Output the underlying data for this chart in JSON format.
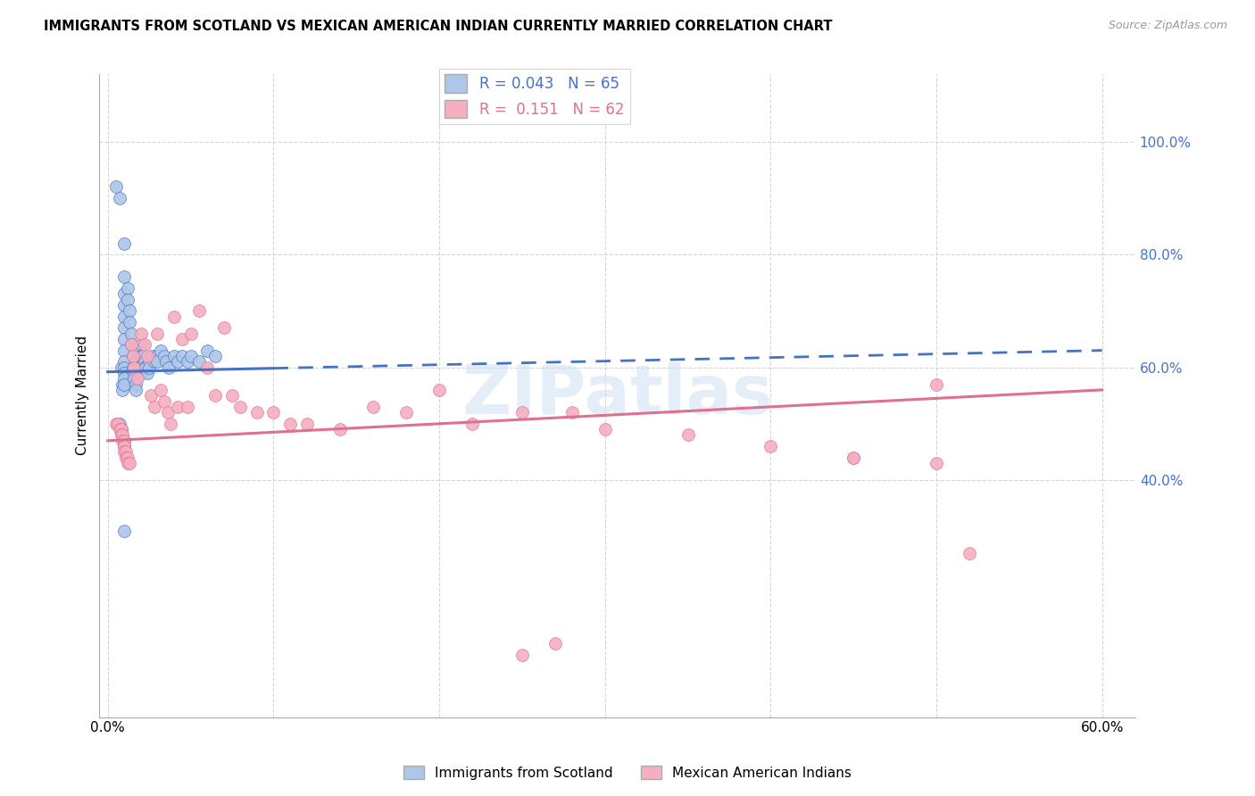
{
  "title": "IMMIGRANTS FROM SCOTLAND VS MEXICAN AMERICAN INDIAN CURRENTLY MARRIED CORRELATION CHART",
  "source": "Source: ZipAtlas.com",
  "ylabel": "Currently Married",
  "legend_label1": "Immigrants from Scotland",
  "legend_label2": "Mexican American Indians",
  "r1": 0.043,
  "n1": 65,
  "r2": 0.151,
  "n2": 62,
  "color_blue": "#aec6e8",
  "color_pink": "#f4afc0",
  "line_color_blue": "#4472c4",
  "line_color_pink": "#e07090",
  "watermark": "ZIPatlas",
  "xlim": [
    -0.005,
    0.62
  ],
  "ylim": [
    -0.02,
    1.12
  ],
  "y_tick_vals": [
    0.4,
    0.6,
    0.8,
    1.0
  ],
  "y_tick_labels": [
    "40.0%",
    "60.0%",
    "80.0%",
    "100.0%"
  ],
  "x_tick_vals": [
    0.0,
    0.1,
    0.2,
    0.3,
    0.4,
    0.5,
    0.6
  ],
  "x_tick_labels": [
    "0.0%",
    "",
    "",
    "",
    "",
    "",
    "60.0%"
  ],
  "blue_x": [
    0.005,
    0.007,
    0.008,
    0.009,
    0.009,
    0.01,
    0.01,
    0.01,
    0.01,
    0.01,
    0.01,
    0.01,
    0.01,
    0.01,
    0.01,
    0.01,
    0.01,
    0.01,
    0.012,
    0.012,
    0.013,
    0.013,
    0.014,
    0.014,
    0.015,
    0.015,
    0.016,
    0.016,
    0.017,
    0.017,
    0.018,
    0.018,
    0.019,
    0.02,
    0.02,
    0.02,
    0.02,
    0.021,
    0.022,
    0.022,
    0.023,
    0.024,
    0.025,
    0.025,
    0.027,
    0.028,
    0.03,
    0.03,
    0.032,
    0.034,
    0.035,
    0.037,
    0.04,
    0.042,
    0.045,
    0.048,
    0.05,
    0.055,
    0.06,
    0.065,
    0.007,
    0.008,
    0.01,
    0.01,
    0.01
  ],
  "blue_y": [
    0.92,
    0.9,
    0.6,
    0.57,
    0.56,
    0.82,
    0.76,
    0.73,
    0.71,
    0.69,
    0.67,
    0.65,
    0.63,
    0.61,
    0.6,
    0.59,
    0.58,
    0.57,
    0.74,
    0.72,
    0.7,
    0.68,
    0.66,
    0.64,
    0.62,
    0.6,
    0.59,
    0.58,
    0.57,
    0.56,
    0.63,
    0.61,
    0.6,
    0.64,
    0.62,
    0.6,
    0.59,
    0.62,
    0.61,
    0.6,
    0.6,
    0.59,
    0.61,
    0.6,
    0.62,
    0.61,
    0.62,
    0.61,
    0.63,
    0.62,
    0.61,
    0.6,
    0.62,
    0.61,
    0.62,
    0.61,
    0.62,
    0.61,
    0.63,
    0.62,
    0.5,
    0.49,
    0.47,
    0.46,
    0.31
  ],
  "pink_x": [
    0.005,
    0.006,
    0.007,
    0.008,
    0.008,
    0.009,
    0.009,
    0.01,
    0.01,
    0.01,
    0.01,
    0.011,
    0.011,
    0.012,
    0.012,
    0.013,
    0.014,
    0.015,
    0.016,
    0.018,
    0.02,
    0.022,
    0.024,
    0.026,
    0.028,
    0.03,
    0.032,
    0.034,
    0.036,
    0.038,
    0.04,
    0.042,
    0.045,
    0.048,
    0.05,
    0.055,
    0.06,
    0.065,
    0.07,
    0.075,
    0.08,
    0.09,
    0.1,
    0.11,
    0.12,
    0.14,
    0.16,
    0.18,
    0.2,
    0.22,
    0.25,
    0.28,
    0.3,
    0.35,
    0.4,
    0.45,
    0.5,
    0.52,
    0.45,
    0.5,
    0.27,
    0.25
  ],
  "pink_y": [
    0.5,
    0.5,
    0.49,
    0.49,
    0.48,
    0.48,
    0.47,
    0.47,
    0.46,
    0.46,
    0.45,
    0.45,
    0.44,
    0.44,
    0.43,
    0.43,
    0.64,
    0.62,
    0.6,
    0.58,
    0.66,
    0.64,
    0.62,
    0.55,
    0.53,
    0.66,
    0.56,
    0.54,
    0.52,
    0.5,
    0.69,
    0.53,
    0.65,
    0.53,
    0.66,
    0.7,
    0.6,
    0.55,
    0.67,
    0.55,
    0.53,
    0.52,
    0.52,
    0.5,
    0.5,
    0.49,
    0.53,
    0.52,
    0.56,
    0.5,
    0.52,
    0.52,
    0.49,
    0.48,
    0.46,
    0.44,
    0.57,
    0.27,
    0.44,
    0.43,
    0.11,
    0.09
  ]
}
